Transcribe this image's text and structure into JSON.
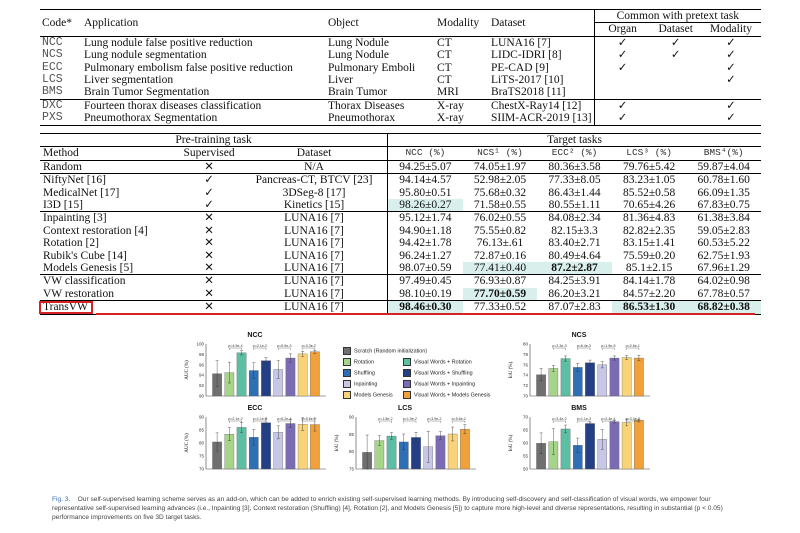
{
  "table1": {
    "headers": {
      "code": "Code*",
      "application": "Application",
      "object": "Object",
      "modality": "Modality",
      "dataset": "Dataset",
      "common": "Common with pretext task",
      "organ": "Organ",
      "dataset2": "Dataset",
      "modality2": "Modality"
    },
    "rows": [
      {
        "code": "NCC",
        "app": "Lung nodule false positive reduction",
        "object": "Lung Nodule",
        "modality": "CT",
        "dataset": "LUNA16 [7]",
        "organ": "✓",
        "ds": "✓",
        "mod": "✓"
      },
      {
        "code": "NCS",
        "app": "Lung nodule segmentation",
        "object": "Lung Nodule",
        "modality": "CT",
        "dataset": "LIDC-IDRI [8]",
        "organ": "✓",
        "ds": "✓",
        "mod": "✓"
      },
      {
        "code": "ECC",
        "app": "Pulmonary embolism false positive reduction",
        "object": "Pulmonary Emboli",
        "modality": "CT",
        "dataset": "PE-CAD [9]",
        "organ": "✓",
        "ds": "",
        "mod": "✓"
      },
      {
        "code": "LCS",
        "app": "Liver segmentation",
        "object": "Liver",
        "modality": "CT",
        "dataset": "LiTS-2017 [10]",
        "organ": "",
        "ds": "",
        "mod": "✓"
      },
      {
        "code": "BMS",
        "app": "Brain Tumor Segmentation",
        "object": "Brain Tumor",
        "modality": "MRI",
        "dataset": "BraTS2018 [11]",
        "organ": "",
        "ds": "",
        "mod": ""
      },
      {
        "code": "DXC",
        "app": "Fourteen thorax diseases classification",
        "object": "Thorax Diseases",
        "modality": "X-ray",
        "dataset": "ChestX-Ray14 [12]",
        "organ": "✓",
        "ds": "",
        "mod": "✓"
      },
      {
        "code": "PXS",
        "app": "Pneumothorax Segmentation",
        "object": "Pneumothorax",
        "modality": "X-ray",
        "dataset": "SIIM-ACR-2019 [13]",
        "organ": "✓",
        "ds": "",
        "mod": "✓"
      }
    ]
  },
  "table2": {
    "pretrain": "Pre-training task",
    "target": "Target tasks",
    "method": "Method",
    "supervised": "Supervised",
    "dataset": "Dataset",
    "cols": [
      "NCC (%)",
      "NCS¹ (%)",
      "ECC² (%)",
      "LCS³ (%)",
      "BMS⁴(%)"
    ],
    "rows": [
      {
        "m": "Random",
        "s": "✕",
        "d": "N/A",
        "v": [
          "94.25±5.07",
          "74.05±1.97",
          "80.36±3.58",
          "79.76±5.42",
          "59.87±4.04"
        ]
      },
      {
        "m": "NiftyNet [16]",
        "s": "✓",
        "d": "Pancreas-CT, BTCV [23]",
        "v": [
          "94.14±4.57",
          "52.98±2.05",
          "77.33±8.05",
          "83.23±1.05",
          "60.78±1.60"
        ]
      },
      {
        "m": "MedicalNet [17]",
        "s": "✓",
        "d": "3DSeg-8 [17]",
        "v": [
          "95.80±0.51",
          "75.68±0.32",
          "86.43±1.44",
          "85.52±0.58",
          "66.09±1.35"
        ]
      },
      {
        "m": "I3D [15]",
        "s": "✓",
        "d": "Kinetics [15]",
        "v": [
          "98.26±0.27",
          "71.58±0.55",
          "80.55±1.11",
          "70.65±4.26",
          "67.83±0.75"
        ]
      },
      {
        "m": "Inpainting [3]",
        "s": "✕",
        "d": "LUNA16 [7]",
        "v": [
          "95.12±1.74",
          "76.02±0.55",
          "84.08±2.34",
          "81.36±4.83",
          "61.38±3.84"
        ]
      },
      {
        "m": "Context restoration [4]",
        "s": "✕",
        "d": "LUNA16 [7]",
        "v": [
          "94.90±1.18",
          "75.55±0.82",
          "82.15±3.3",
          "82.82±2.35",
          "59.05±2.83"
        ]
      },
      {
        "m": "Rotation [2]",
        "s": "✕",
        "d": "LUNA16 [7]",
        "v": [
          "94.42±1.78",
          "76.13±.61",
          "83.40±2.71",
          "83.15±1.41",
          "60.53±5.22"
        ]
      },
      {
        "m": "Rubik's Cube [14]",
        "s": "✕",
        "d": "LUNA16 [7]",
        "v": [
          "96.24±1.27",
          "72.87±0.16",
          "80.49±4.64",
          "75.59±0.20",
          "62.75±1.93"
        ]
      },
      {
        "m": "Models Genesis [5]",
        "s": "✕",
        "d": "LUNA16 [7]",
        "v": [
          "98.07±0.59",
          "77.41±0.40",
          "87.2±2.87",
          "85.1±2.15",
          "67.96±1.29"
        ]
      },
      {
        "m": "VW classification",
        "s": "✕",
        "d": "LUNA16 [7]",
        "v": [
          "97.49±0.45",
          "76.93±0.87",
          "84.25±3.91",
          "84.14±1.78",
          "64.02±0.98"
        ]
      },
      {
        "m": "VW restoration",
        "s": "✕",
        "d": "LUNA16 [7]",
        "v": [
          "98.10±0.19",
          "77.70±0.59",
          "86.20±3.21",
          "84.57±2.20",
          "67.78±0.57"
        ]
      },
      {
        "m": "TransVW",
        "s": "✕",
        "d": "LUNA16 [7]",
        "v": [
          "98.46±0.30",
          "77.33±0.52",
          "87.07±2.83",
          "86.53±1.30",
          "68.82±0.38"
        ]
      }
    ]
  },
  "figure": {
    "panels": [
      {
        "title": "NCC",
        "ylabel": "AUC (%)",
        "yticks": [
          "100",
          "98",
          "96",
          "94",
          "92",
          "90"
        ],
        "ymin": 90,
        "ymax": 100,
        "pvals": [
          "p=4.9e-4",
          "p=2.1e-2",
          "p=5.9e-3",
          "p=3.3e-2"
        ],
        "bars": [
          94.3,
          94.5,
          98.3,
          94.9,
          96.8,
          95.1,
          97.3,
          98.1,
          98.5
        ],
        "err": [
          2.5,
          2.0,
          0.4,
          1.5,
          0.6,
          1.7,
          0.8,
          0.5,
          0.3
        ]
      },
      {
        "title": "NCS",
        "ylabel": "IoU (%)",
        "yticks": [
          "80",
          "78",
          "76",
          "74",
          "72",
          "70"
        ],
        "ymin": 70,
        "ymax": 80,
        "pvals": [
          "p=3.3e-3",
          "p=6.4e-3",
          "p=1.9e-5",
          "p=2.6e-1"
        ],
        "bars": [
          74.1,
          75.3,
          77.2,
          75.5,
          76.4,
          76.0,
          77.3,
          77.4,
          77.3
        ],
        "err": [
          1.2,
          0.6,
          0.5,
          0.8,
          0.5,
          0.6,
          0.4,
          0.4,
          0.5
        ]
      },
      {
        "title": "ECC",
        "ylabel": "AUC (%)",
        "yticks": [
          "90",
          "85",
          "80",
          "75",
          "70"
        ],
        "ymin": 70,
        "ymax": 90,
        "pvals": [
          "p=2.1e-2",
          "p=1.1e-4",
          "p=6.2e-4",
          "p=5.6e-1"
        ],
        "bars": [
          80.4,
          83.4,
          86.0,
          82.2,
          87.8,
          84.1,
          87.5,
          87.2,
          87.1
        ],
        "err": [
          3.5,
          2.5,
          2.0,
          3.0,
          1.8,
          2.5,
          1.5,
          2.5,
          2.5
        ]
      },
      {
        "title": "LCS",
        "ylabel": "IoU (%)",
        "yticks": [
          "90",
          "85",
          "80",
          "75"
        ],
        "ymin": 75,
        "ymax": 90,
        "pvals": [
          "p=1.8e-2",
          "p=1.5e-2",
          "p=3.9e-2",
          "p=5.6e-2"
        ],
        "bars": [
          79.8,
          83.2,
          84.5,
          82.8,
          84.1,
          81.4,
          84.6,
          85.1,
          86.5
        ],
        "err": [
          5.0,
          1.4,
          1.0,
          2.3,
          1.5,
          4.5,
          1.2,
          2.0,
          1.3
        ]
      },
      {
        "title": "BMS",
        "ylabel": "IoU (%)",
        "yticks": [
          "70",
          "65",
          "60",
          "55",
          "50"
        ],
        "ymin": 50,
        "ymax": 70,
        "pvals": [
          "p=3.4e-2",
          "p=1.1e-3",
          "p=2.4e-4",
          "p=3.4e-2"
        ],
        "bars": [
          59.9,
          60.5,
          65.4,
          59.1,
          67.5,
          61.4,
          68.2,
          67.9,
          68.8
        ],
        "err": [
          4.0,
          5.0,
          1.5,
          2.8,
          0.6,
          3.8,
          0.5,
          1.3,
          0.4
        ]
      }
    ],
    "legend": [
      {
        "label": "Scratch (Random initialization)",
        "color": "#6f6f6f"
      },
      {
        "label": "Rotation",
        "color": "#a6d488"
      },
      {
        "label": "Visual Words + Rotation",
        "color": "#5cbfa3"
      },
      {
        "label": "Shuffling",
        "color": "#2f6fb5"
      },
      {
        "label": "Visual Words + Shuffling",
        "color": "#243f86"
      },
      {
        "label": "Inpainting",
        "color": "#c8c8e6"
      },
      {
        "label": "Visual Words + Inpainting",
        "color": "#7b6bb3"
      },
      {
        "label": "Models Genesis",
        "color": "#f9d37a"
      },
      {
        "label": "Visual Words + Models Genesis",
        "color": "#f0a13a"
      }
    ]
  },
  "caption": {
    "fig": "Fig. 3.",
    "text": "Our self-supervised learning scheme serves as an add-on, which can be added to enrich existing self-supervised learning methods. By introducing self-discovery and self-classification of visual words, we empower four representative self-supervised learning advances (i.e., Inpainting [3], Context restoration (Shuffling) [4], Rotation [2], and Models Genesis [5]) to capture more high-level and diverse representations, resulting in substantial (p < 0.05) performance improvements on five 3D target tasks."
  }
}
